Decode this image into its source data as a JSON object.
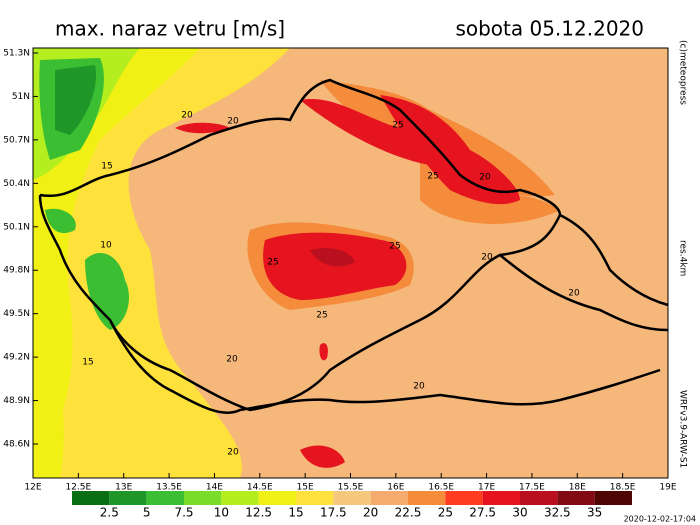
{
  "header": {
    "title": "max. naraz vetru [m/s]",
    "date": "sobota 05.12.2020"
  },
  "axes": {
    "x_labels": [
      "12E",
      "12.5E",
      "13E",
      "13.5E",
      "14E",
      "14.5E",
      "15E",
      "15.5E",
      "16E",
      "16.5E",
      "17E",
      "17.5E",
      "18E",
      "18.5E",
      "19E"
    ],
    "y_labels": [
      "51.3N",
      "51N",
      "50.7N",
      "50.4N",
      "50.1N",
      "49.8N",
      "49.5N",
      "49.2N",
      "48.9N",
      "48.6N"
    ]
  },
  "contour_labels": [
    "20",
    "20",
    "15",
    "25",
    "25",
    "20",
    "10",
    "25",
    "25",
    "20",
    "20",
    "25",
    "15",
    "20",
    "20",
    "20"
  ],
  "side_texts": {
    "copyright": "(c)meteopress",
    "resolution": "res.4km",
    "model": "WRFv3.9-ARW-S1"
  },
  "legend": {
    "colors": [
      "#0a6e14",
      "#1e9628",
      "#3cbe32",
      "#78dc28",
      "#b4ee1e",
      "#f0f014",
      "#ffe13c",
      "#f5c87d",
      "#f5aa6e",
      "#f58c3c",
      "#ff3c1e",
      "#e6141e",
      "#b90f1e",
      "#820a14",
      "#500505"
    ],
    "labels": [
      "2.5",
      "5",
      "7.5",
      "10",
      "12.5",
      "15",
      "17.5",
      "20",
      "22.5",
      "25",
      "27.5",
      "30",
      "32.5",
      "35"
    ]
  },
  "footer": "2020-12-02-17:04"
}
